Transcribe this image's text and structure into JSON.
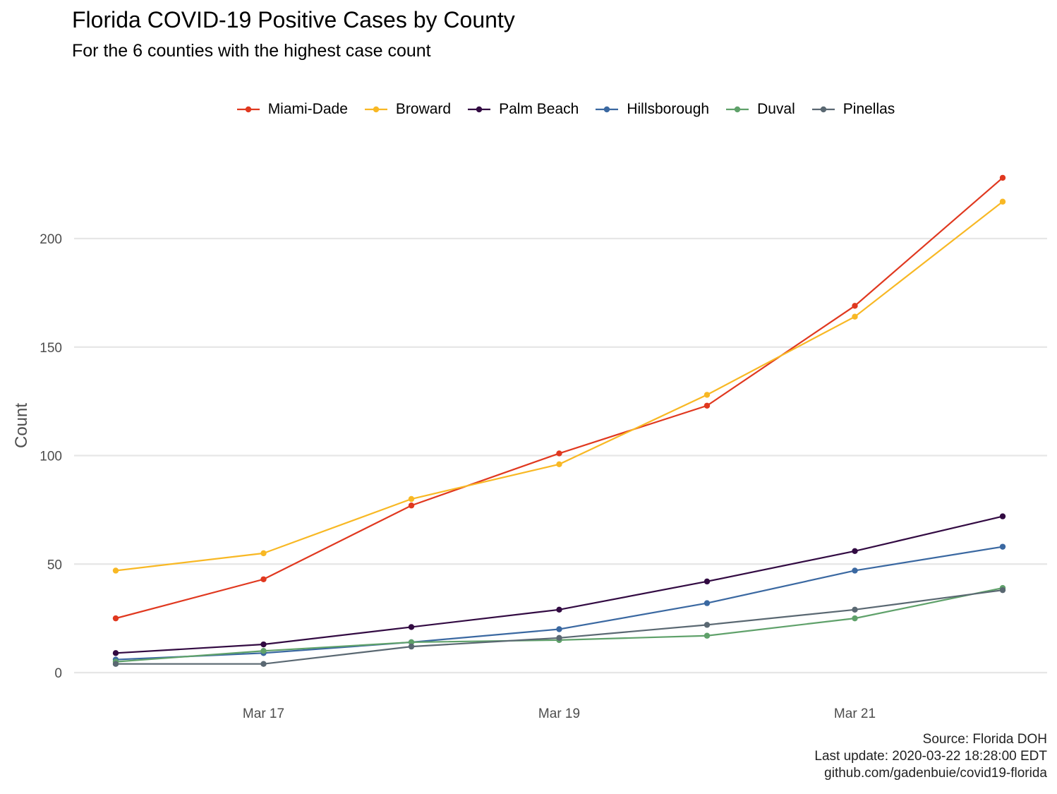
{
  "title": "Florida COVID-19 Positive Cases by County",
  "subtitle": "For the 6 counties with the highest case count",
  "caption": {
    "line1": "Source: Florida DOH",
    "line2": "Last update: 2020-03-22 18:28:00 EDT",
    "line3": "github.com/gadenbuie/covid19-florida"
  },
  "chart_data": {
    "type": "line",
    "ylabel": "Count",
    "xlabel": "",
    "x": [
      "2020-03-16",
      "2020-03-17",
      "2020-03-18",
      "2020-03-19",
      "2020-03-20",
      "2020-03-21",
      "2020-03-22"
    ],
    "x_ticks": [
      {
        "date": "2020-03-17",
        "label": "Mar 17"
      },
      {
        "date": "2020-03-19",
        "label": "Mar 19"
      },
      {
        "date": "2020-03-21",
        "label": "Mar 21"
      }
    ],
    "ylim": [
      -10,
      228
    ],
    "y_ticks": [
      0,
      50,
      100,
      150,
      200
    ],
    "grid": true,
    "legend_position": "top",
    "series": [
      {
        "name": "Miami-Dade",
        "color": "#E0381F",
        "values": [
          25,
          43,
          77,
          101,
          123,
          169,
          228
        ]
      },
      {
        "name": "Broward",
        "color": "#F8B824",
        "values": [
          47,
          55,
          80,
          96,
          128,
          164,
          217
        ]
      },
      {
        "name": "Palm Beach",
        "color": "#320A42",
        "values": [
          9,
          13,
          21,
          29,
          42,
          56,
          72
        ]
      },
      {
        "name": "Hillsborough",
        "color": "#3A68A1",
        "values": [
          6,
          9,
          14,
          20,
          32,
          47,
          58
        ]
      },
      {
        "name": "Duval",
        "color": "#5FA16A",
        "values": [
          5,
          10,
          14,
          15,
          17,
          25,
          39
        ]
      },
      {
        "name": "Pinellas",
        "color": "#5A6872",
        "values": [
          4,
          4,
          12,
          16,
          22,
          29,
          38
        ]
      }
    ]
  }
}
